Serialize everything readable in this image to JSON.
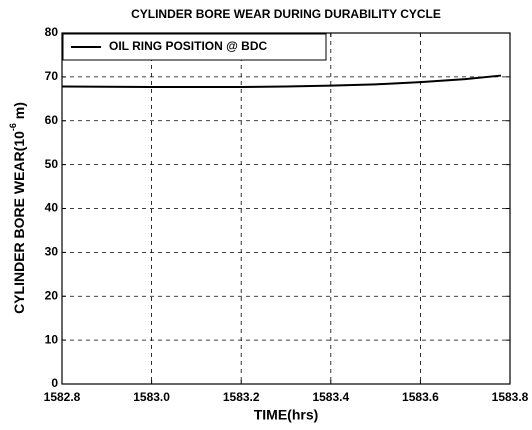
{
  "chart_data": {
    "type": "line",
    "title": "CYLINDER BORE WEAR DURING DURABILITY CYCLE",
    "xlabel": "TIME(hrs)",
    "ylabel": {
      "text": "CYLINDER BORE WEAR(10",
      "superscript": "-6",
      "unit": " m)"
    },
    "x": [
      1582.8,
      1583.0,
      1583.2,
      1583.3,
      1583.4,
      1583.5,
      1583.6,
      1583.7,
      1583.78
    ],
    "series": [
      {
        "name": "OIL RING POSITION @ BDC",
        "color": "#000000",
        "values": [
          67.8,
          67.7,
          67.7,
          67.8,
          68.0,
          68.3,
          68.8,
          69.5,
          70.3
        ]
      }
    ],
    "xlim": [
      1582.8,
      1583.8
    ],
    "xticks": [
      1582.8,
      {
        "value": 1583,
        "label": "1583.0"
      },
      1583.2,
      1583.4,
      1583.6,
      1583.8
    ],
    "ylim": [
      0,
      80
    ],
    "yticks": [
      0,
      10,
      20,
      30,
      40,
      50,
      60,
      70,
      80
    ],
    "grid": true,
    "legend": "upper left"
  }
}
